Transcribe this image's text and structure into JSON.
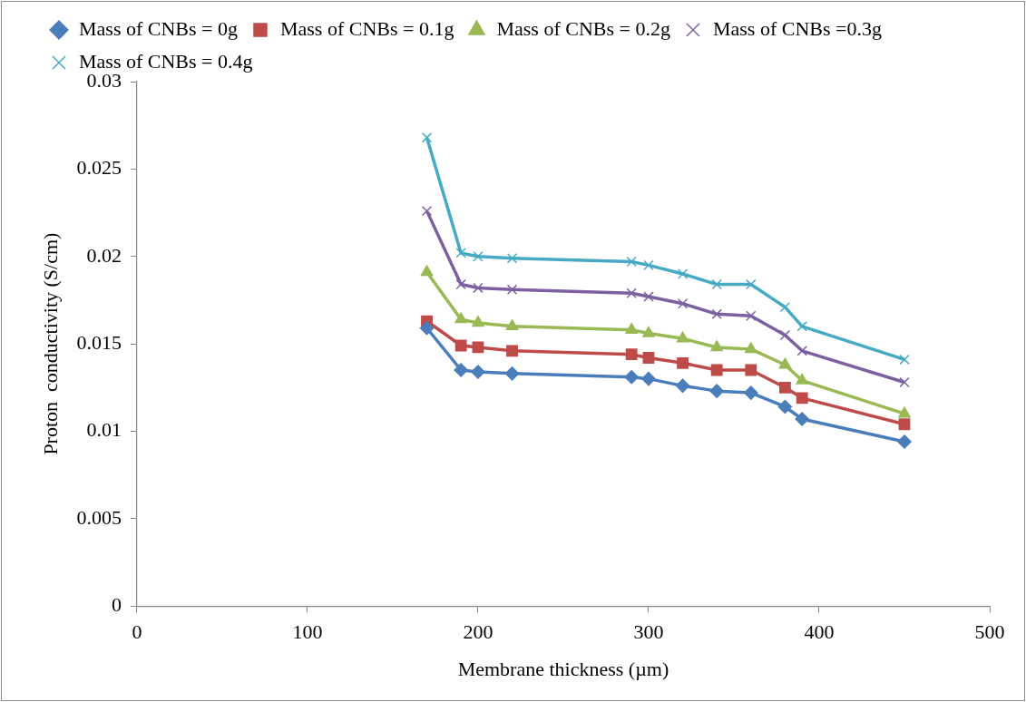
{
  "chart_data": {
    "type": "line",
    "xlabel": "Membrane thickness (µm)",
    "ylabel": "Proton  conductivity (S/cm)",
    "x": [
      170,
      190,
      200,
      220,
      290,
      300,
      320,
      340,
      360,
      380,
      390,
      450
    ],
    "series": [
      {
        "name": "Mass of CNBs = 0g",
        "color": "#4a7ebb",
        "marker": "diamond",
        "values": [
          0.0159,
          0.0135,
          0.0134,
          0.0133,
          0.0131,
          0.013,
          0.0126,
          0.0123,
          0.0122,
          0.0114,
          0.0107,
          0.0094
        ]
      },
      {
        "name": "Mass of CNBs = 0.1g",
        "color": "#be4b48",
        "marker": "square",
        "values": [
          0.0163,
          0.0149,
          0.0148,
          0.0146,
          0.0144,
          0.0142,
          0.0139,
          0.0135,
          0.0135,
          0.0125,
          0.0119,
          0.0104
        ]
      },
      {
        "name": "Mass of CNBs = 0.2g",
        "color": "#98b954",
        "marker": "triangle",
        "values": [
          0.0191,
          0.0164,
          0.0162,
          0.016,
          0.0158,
          0.0156,
          0.0153,
          0.0148,
          0.0147,
          0.0138,
          0.0129,
          0.011
        ]
      },
      {
        "name": "Mass of CNBs =0.3g",
        "color": "#7d60a0",
        "marker": "cross",
        "values": [
          0.0226,
          0.0184,
          0.0182,
          0.0181,
          0.0179,
          0.0177,
          0.0173,
          0.0167,
          0.0166,
          0.0155,
          0.0146,
          0.0128
        ]
      },
      {
        "name": "Mass of CNBs = 0.4g",
        "color": "#46aac5",
        "marker": "cross",
        "values": [
          0.0268,
          0.0202,
          0.02,
          0.0199,
          0.0197,
          0.0195,
          0.019,
          0.0184,
          0.0184,
          0.0171,
          0.016,
          0.0141
        ]
      }
    ],
    "xlim": [
      0,
      500
    ],
    "xticks": [
      0,
      100,
      200,
      300,
      400,
      500
    ],
    "ylim": [
      0,
      0.03
    ],
    "yticks": [
      0,
      0.005,
      0.01,
      0.015,
      0.02,
      0.025,
      0.03
    ],
    "grid": false,
    "legend": "top",
    "line_style": "solid"
  }
}
